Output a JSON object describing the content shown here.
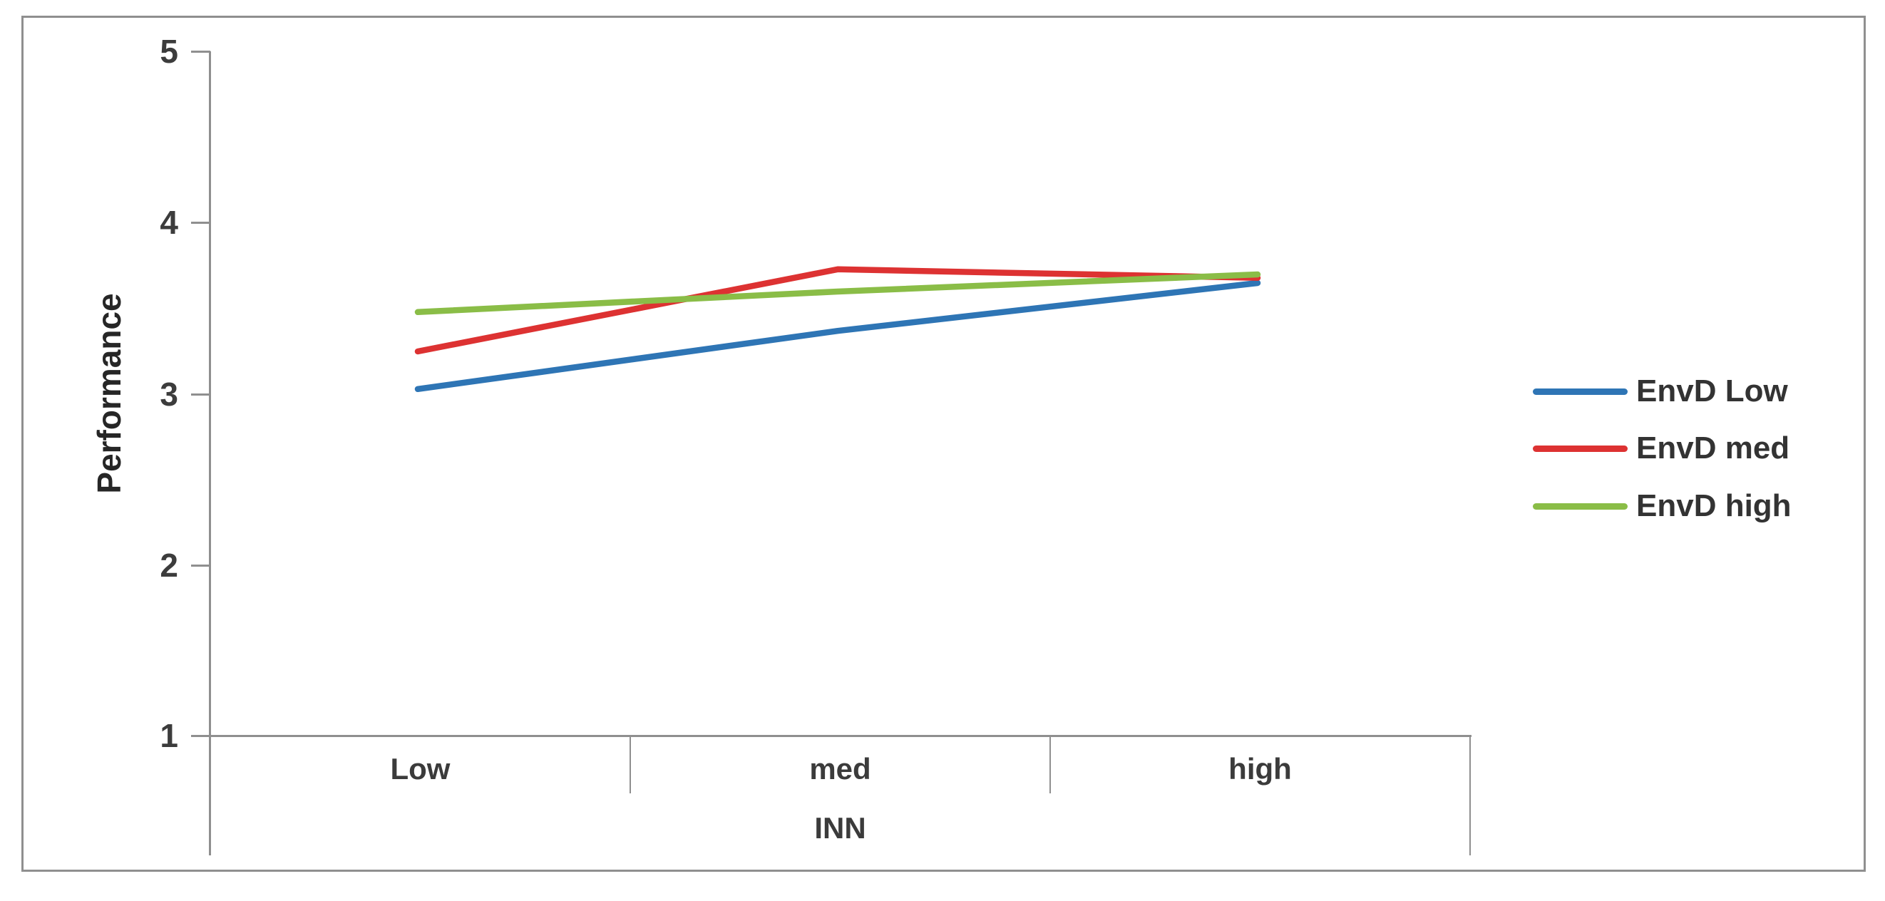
{
  "chart_data": {
    "type": "line",
    "categories": [
      "Low",
      "med",
      "high"
    ],
    "x_axis_title": "INN",
    "y_axis_title": "Performance",
    "ylim": [
      1,
      5
    ],
    "y_tick_labels_top_to_bottom": [
      "5",
      "4",
      "3",
      "2",
      "1"
    ],
    "grid": false,
    "legend_position": "right-middle",
    "series": [
      {
        "name": "EnvD Low",
        "color": "#2E75B5",
        "values": [
          3.03,
          3.37,
          3.65
        ]
      },
      {
        "name": "EnvD med",
        "color": "#DD3232",
        "values": [
          3.25,
          3.73,
          3.68
        ]
      },
      {
        "name": "EnvD high",
        "color": "#8ABD47",
        "values": [
          3.48,
          3.6,
          3.7
        ]
      }
    ]
  }
}
